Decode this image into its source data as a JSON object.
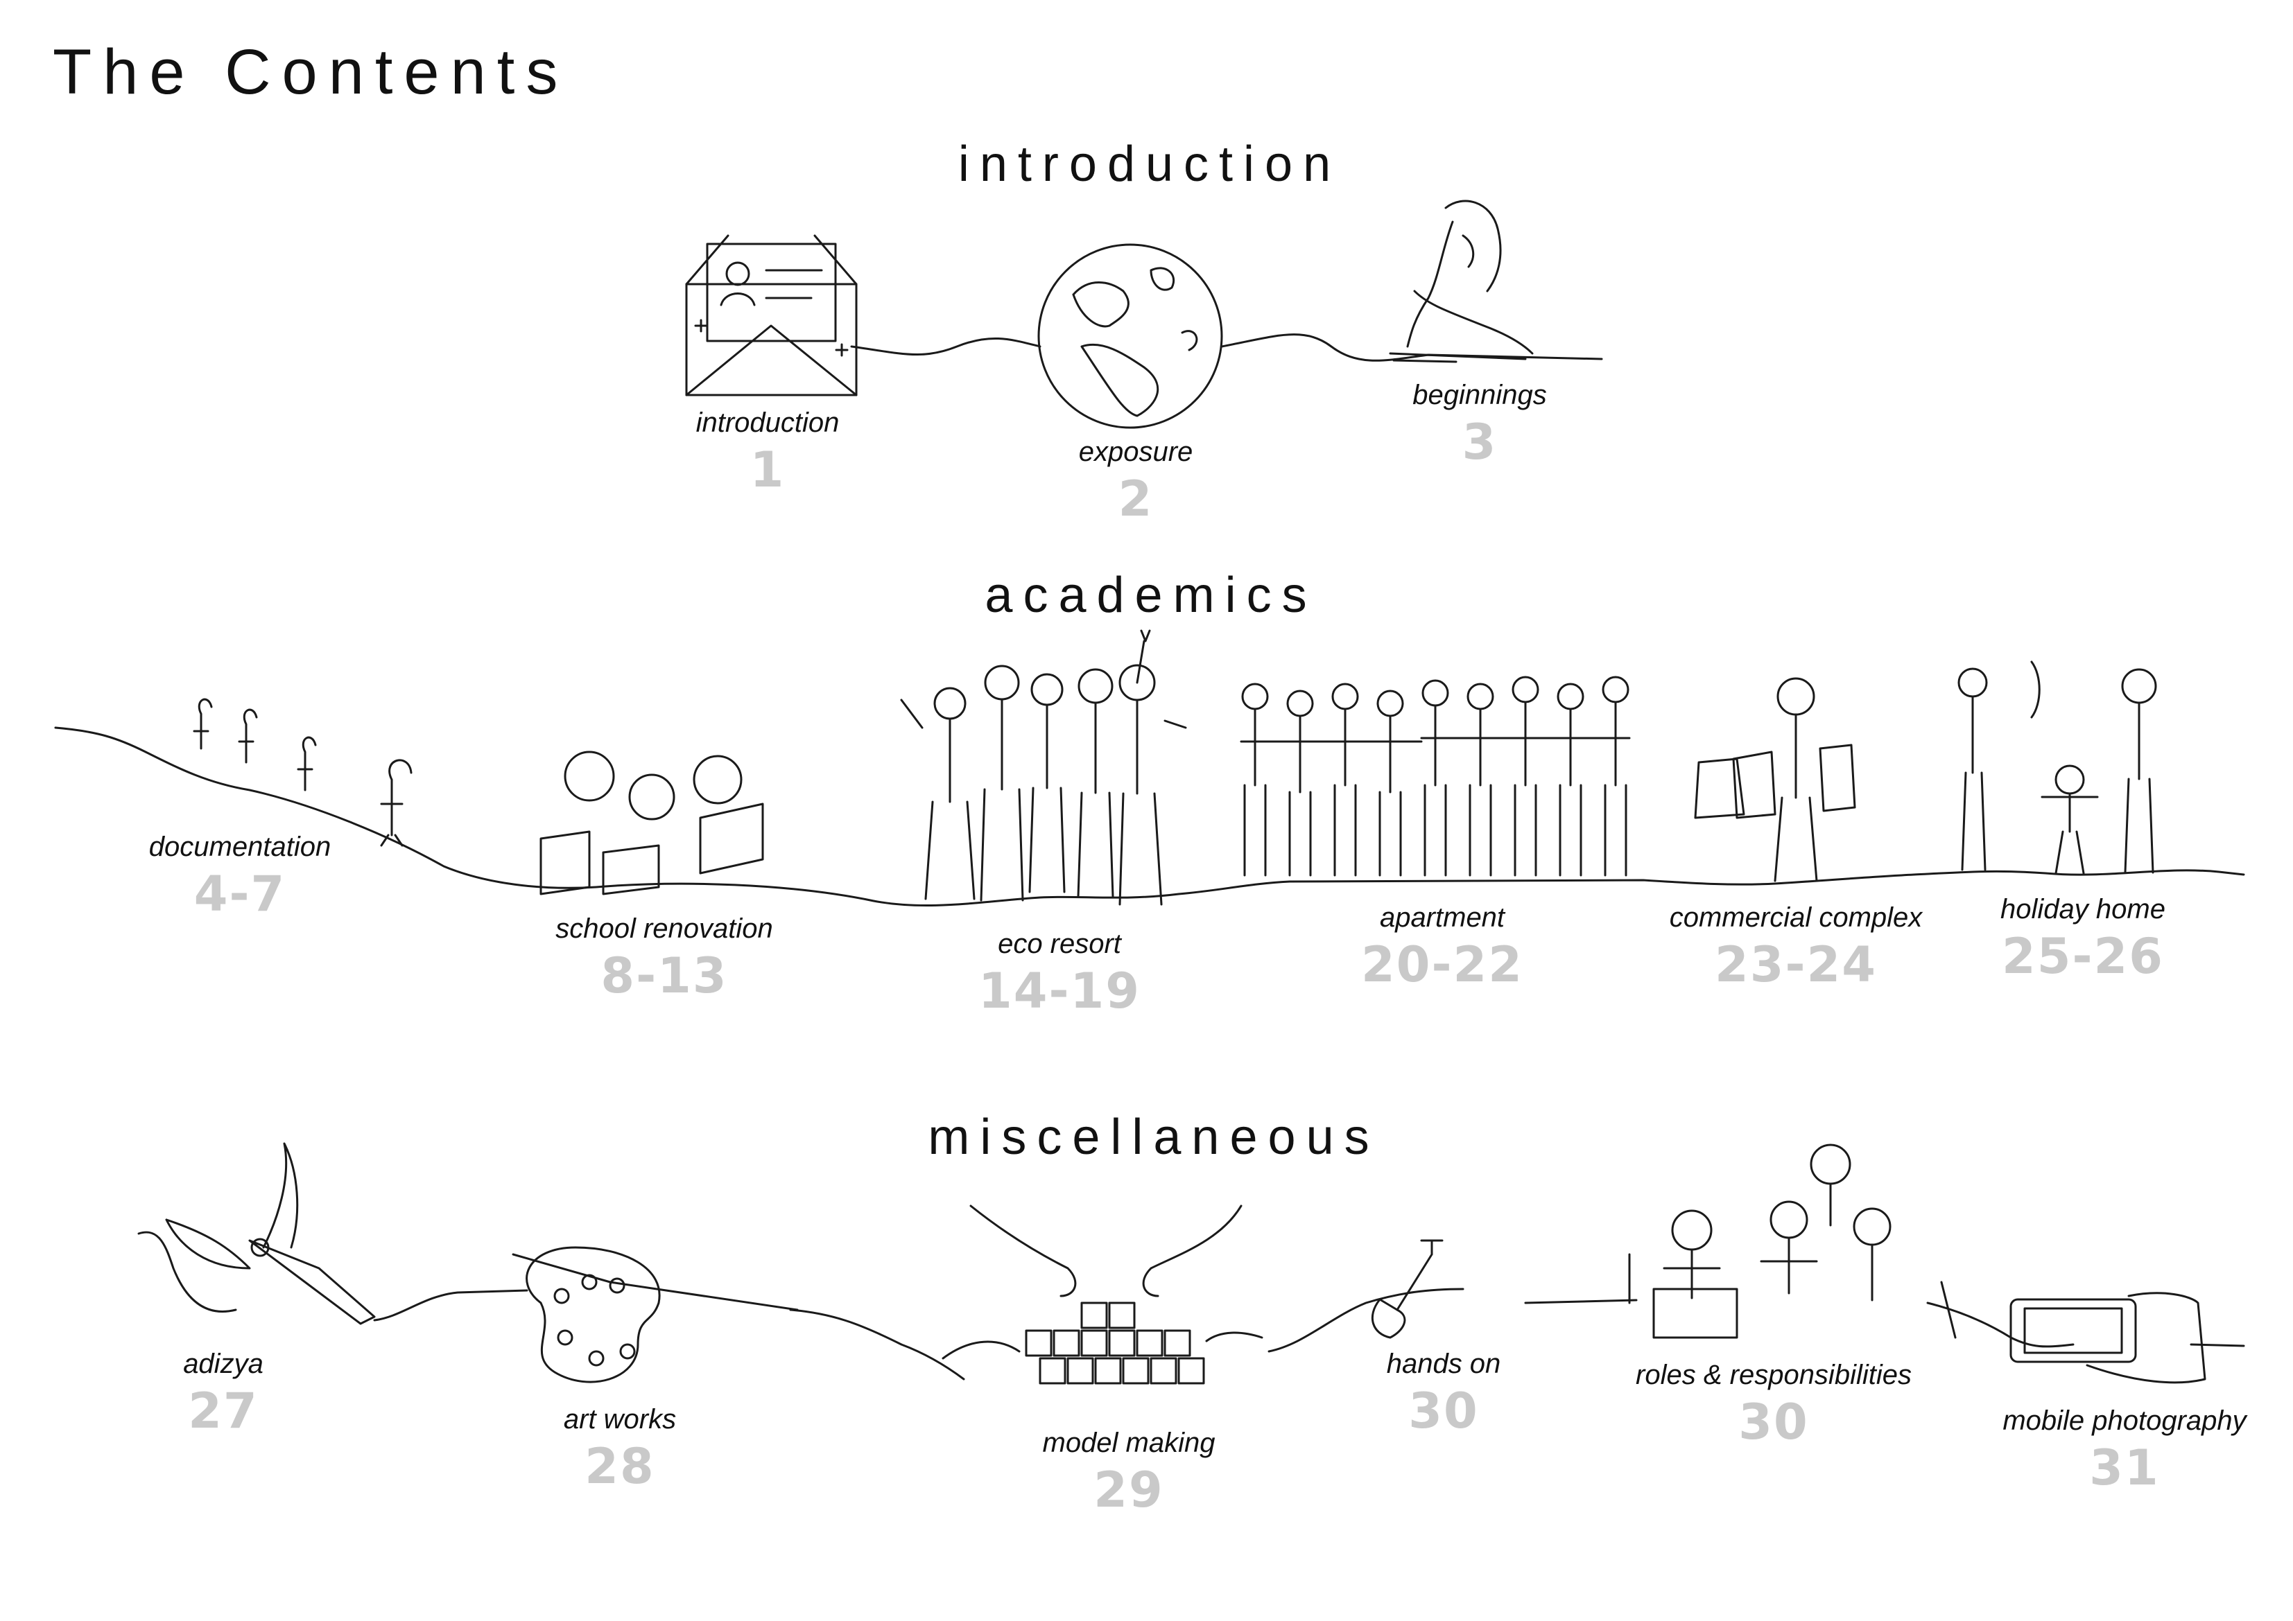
{
  "title": "The Contents",
  "sections": [
    {
      "heading": "introduction",
      "items": [
        {
          "label": "introduction",
          "page": "1",
          "icon": "envelope-letter-icon"
        },
        {
          "label": "exposure",
          "page": "2",
          "icon": "globe-icon"
        },
        {
          "label": "beginnings",
          "page": "3",
          "icon": "girl-drawing-icon"
        }
      ]
    },
    {
      "heading": "academics",
      "items": [
        {
          "label": "documentation",
          "page": "4-7",
          "icon": "hikers-icon"
        },
        {
          "label": "school renovation",
          "page": "8-13",
          "icon": "children-reading-icon"
        },
        {
          "label": "eco resort",
          "page": "14-19",
          "icon": "friends-group-icon"
        },
        {
          "label": "apartment",
          "page": "20-22",
          "icon": "people-lineup-icon"
        },
        {
          "label": "commercial complex",
          "page": "23-24",
          "icon": "shopper-icon"
        },
        {
          "label": "holiday home",
          "page": "25-26",
          "icon": "family-walking-icon"
        }
      ]
    },
    {
      "heading": "miscellaneous",
      "items": [
        {
          "label": "adizya",
          "page": "27",
          "icon": "pen-bow-icon"
        },
        {
          "label": "art works",
          "page": "28",
          "icon": "paint-palette-icon"
        },
        {
          "label": "model making",
          "page": "29",
          "icon": "hands-blocks-icon"
        },
        {
          "label": "hands on",
          "page": "30",
          "icon": "shovel-icon"
        },
        {
          "label": "roles & responsibilities",
          "page": "30",
          "icon": "team-meeting-icon"
        },
        {
          "label": "mobile photography",
          "page": "31",
          "icon": "hand-phone-icon"
        }
      ]
    }
  ]
}
